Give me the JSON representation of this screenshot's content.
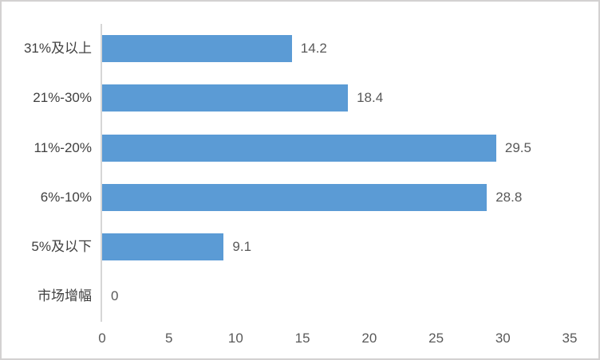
{
  "chart_data": {
    "type": "bar",
    "orientation": "horizontal",
    "title": "",
    "categories": [
      "31%及以上",
      "21%-30%",
      "11%-20%",
      "6%-10%",
      "5%及以下",
      "市场增幅"
    ],
    "values": [
      14.2,
      18.4,
      29.5,
      28.8,
      9.1,
      0
    ],
    "data_labels": [
      "14.2",
      "18.4",
      "29.5",
      "28.8",
      "9.1",
      "0"
    ],
    "data_label_position": "outside-end",
    "x_ticks": [
      "0",
      "5",
      "10",
      "15",
      "20",
      "25",
      "30",
      "35"
    ],
    "xlim": [
      0,
      35
    ],
    "grid": "off",
    "legend": "none"
  },
  "colors": {
    "bar": "#5B9BD5",
    "axis_line": "#D6D6D6",
    "category_label": "#404040",
    "value_label": "#595959",
    "tick_label": "#595959",
    "background": "#FFFFFF",
    "border": "#D3D1D1"
  }
}
